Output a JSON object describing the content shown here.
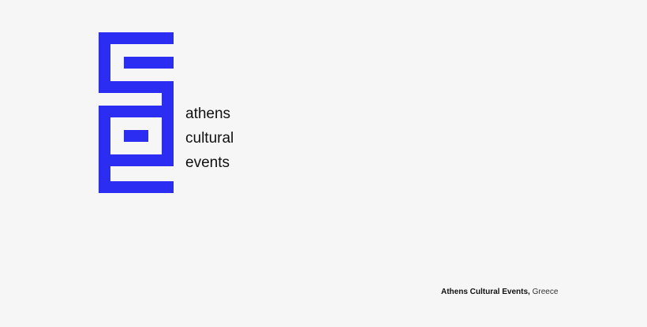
{
  "logo": {
    "lines": [
      "athens",
      "cultural",
      "events"
    ]
  },
  "caption": {
    "name": "Athens Cultural Events,",
    "place": "Greece"
  }
}
